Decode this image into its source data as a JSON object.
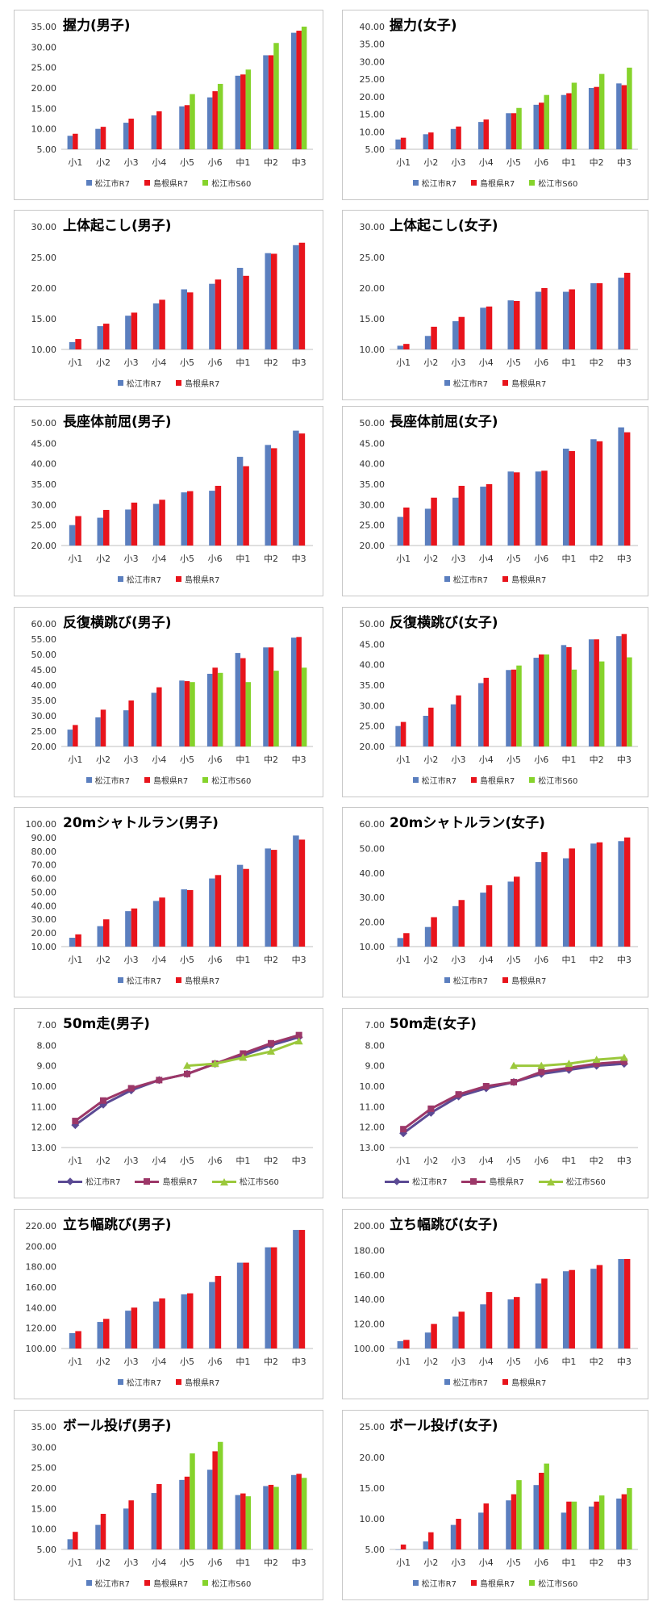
{
  "legend_labels": {
    "matsue_r7": "松江市R7",
    "shimane_r7": "島根県R7",
    "matsue_s60": "松江市S60"
  },
  "colors": {
    "matsue_r7": "#5b7fbf",
    "shimane_r7": "#e8141c",
    "matsue_s60": "#86d32c",
    "matsue_r7_line": "#5b4a94",
    "shimane_r7_line": "#9c3768",
    "matsue_s60_line": "#9bc83c"
  },
  "chart_data": [
    {
      "type": "bar",
      "title": "握力(男子)",
      "categories": [
        "小1",
        "小2",
        "小3",
        "小4",
        "小5",
        "小6",
        "中1",
        "中2",
        "中3"
      ],
      "ylim": [
        5,
        35
      ],
      "yticks": [
        "5.00",
        "10.00",
        "15.00",
        "20.00",
        "25.00",
        "30.00",
        "35.00"
      ],
      "series": [
        {
          "name": "松江市R7",
          "key": "matsue_r7",
          "values": [
            8.3,
            10.0,
            11.5,
            13.3,
            15.5,
            17.7,
            23.0,
            28.0,
            33.5
          ]
        },
        {
          "name": "島根県R7",
          "key": "shimane_r7",
          "values": [
            8.8,
            10.5,
            12.5,
            14.3,
            15.8,
            19.2,
            23.3,
            28.0,
            34.0
          ]
        },
        {
          "name": "松江市S60",
          "key": "matsue_s60",
          "values": [
            null,
            null,
            null,
            null,
            18.5,
            21.0,
            24.5,
            31.0,
            35.0
          ]
        }
      ]
    },
    {
      "type": "bar",
      "title": "握力(女子)",
      "categories": [
        "小1",
        "小2",
        "小3",
        "小4",
        "小5",
        "小6",
        "中1",
        "中2",
        "中3"
      ],
      "ylim": [
        5,
        40
      ],
      "yticks": [
        "5.00",
        "10.00",
        "15.00",
        "20.00",
        "25.00",
        "30.00",
        "35.00",
        "40.00"
      ],
      "series": [
        {
          "name": "松江市R7",
          "key": "matsue_r7",
          "values": [
            7.8,
            9.3,
            10.8,
            12.8,
            15.3,
            17.7,
            20.5,
            22.5,
            23.8
          ]
        },
        {
          "name": "島根県R7",
          "key": "shimane_r7",
          "values": [
            8.3,
            9.8,
            11.5,
            13.5,
            15.3,
            18.3,
            21.0,
            22.8,
            23.3
          ]
        },
        {
          "name": "松江市S60",
          "key": "matsue_s60",
          "values": [
            null,
            null,
            null,
            null,
            16.8,
            20.5,
            24.0,
            26.5,
            28.3
          ]
        }
      ]
    },
    {
      "type": "bar",
      "title": "上体起こし(男子)",
      "categories": [
        "小1",
        "小2",
        "小3",
        "小4",
        "小5",
        "小6",
        "中1",
        "中2",
        "中3"
      ],
      "ylim": [
        10,
        30
      ],
      "yticks": [
        "10.00",
        "15.00",
        "20.00",
        "25.00",
        "30.00"
      ],
      "series": [
        {
          "name": "松江市R7",
          "key": "matsue_r7",
          "values": [
            11.2,
            13.8,
            15.5,
            17.5,
            19.8,
            20.7,
            23.3,
            25.7,
            27.0
          ]
        },
        {
          "name": "島根県R7",
          "key": "shimane_r7",
          "values": [
            11.7,
            14.2,
            16.0,
            18.1,
            19.3,
            21.4,
            22.0,
            25.6,
            27.4
          ]
        }
      ]
    },
    {
      "type": "bar",
      "title": "上体起こし(女子)",
      "categories": [
        "小1",
        "小2",
        "小3",
        "小4",
        "小5",
        "小6",
        "中1",
        "中2",
        "中3"
      ],
      "ylim": [
        10,
        30
      ],
      "yticks": [
        "10.00",
        "15.00",
        "20.00",
        "25.00",
        "30.00"
      ],
      "series": [
        {
          "name": "松江市R7",
          "key": "matsue_r7",
          "values": [
            10.6,
            12.2,
            14.6,
            16.8,
            18.0,
            19.4,
            19.4,
            20.8,
            21.7
          ]
        },
        {
          "name": "島根県R7",
          "key": "shimane_r7",
          "values": [
            10.9,
            13.7,
            15.3,
            17.0,
            17.9,
            20.0,
            19.8,
            20.8,
            22.5
          ]
        }
      ]
    },
    {
      "type": "bar",
      "title": "長座体前屈(男子)",
      "categories": [
        "小1",
        "小2",
        "小3",
        "小4",
        "小5",
        "小6",
        "中1",
        "中2",
        "中3"
      ],
      "ylim": [
        20,
        50
      ],
      "yticks": [
        "20.00",
        "25.00",
        "30.00",
        "35.00",
        "40.00",
        "45.00",
        "50.00"
      ],
      "series": [
        {
          "name": "松江市R7",
          "key": "matsue_r7",
          "values": [
            25.0,
            26.8,
            28.8,
            30.2,
            33.0,
            33.4,
            41.7,
            44.6,
            48.1
          ]
        },
        {
          "name": "島根県R7",
          "key": "shimane_r7",
          "values": [
            27.2,
            28.7,
            30.5,
            31.2,
            33.3,
            34.6,
            39.4,
            43.8,
            47.4
          ]
        }
      ]
    },
    {
      "type": "bar",
      "title": "長座体前屈(女子)",
      "categories": [
        "小1",
        "小2",
        "小3",
        "小4",
        "小5",
        "小6",
        "中1",
        "中2",
        "中3"
      ],
      "ylim": [
        20,
        50
      ],
      "yticks": [
        "20.00",
        "25.00",
        "30.00",
        "35.00",
        "40.00",
        "45.00",
        "50.00"
      ],
      "series": [
        {
          "name": "松江市R7",
          "key": "matsue_r7",
          "values": [
            27.0,
            29.0,
            31.7,
            34.4,
            38.1,
            38.1,
            43.7,
            46.0,
            48.9
          ]
        },
        {
          "name": "島根県R7",
          "key": "shimane_r7",
          "values": [
            29.3,
            31.7,
            34.6,
            35.0,
            37.9,
            38.3,
            43.1,
            45.5,
            47.7
          ]
        }
      ]
    },
    {
      "type": "bar",
      "title": "反復横跳び(男子)",
      "categories": [
        "小1",
        "小2",
        "小3",
        "小4",
        "小5",
        "小6",
        "中1",
        "中2",
        "中3"
      ],
      "ylim": [
        20,
        60
      ],
      "yticks": [
        "20.00",
        "25.00",
        "30.00",
        "35.00",
        "40.00",
        "45.00",
        "50.00",
        "55.00",
        "60.00"
      ],
      "series": [
        {
          "name": "松江市R7",
          "key": "matsue_r7",
          "values": [
            25.5,
            29.5,
            31.8,
            37.5,
            41.5,
            43.7,
            50.5,
            52.3,
            55.5
          ]
        },
        {
          "name": "島根県R7",
          "key": "shimane_r7",
          "values": [
            27.0,
            32.0,
            35.0,
            39.3,
            41.3,
            45.7,
            48.8,
            52.3,
            55.7
          ]
        },
        {
          "name": "松江市S60",
          "key": "matsue_s60",
          "values": [
            null,
            null,
            null,
            null,
            41.0,
            44.0,
            41.0,
            44.7,
            45.7
          ]
        }
      ]
    },
    {
      "type": "bar",
      "title": "反復横跳び(女子)",
      "categories": [
        "小1",
        "小2",
        "小3",
        "小4",
        "小5",
        "小6",
        "中1",
        "中2",
        "中3"
      ],
      "ylim": [
        20,
        50
      ],
      "yticks": [
        "20.00",
        "25.00",
        "30.00",
        "35.00",
        "40.00",
        "45.00",
        "50.00"
      ],
      "series": [
        {
          "name": "松江市R7",
          "key": "matsue_r7",
          "values": [
            25.0,
            27.5,
            30.3,
            35.5,
            38.7,
            41.7,
            44.8,
            46.2,
            47.0
          ]
        },
        {
          "name": "島根県R7",
          "key": "shimane_r7",
          "values": [
            26.0,
            29.5,
            32.5,
            36.8,
            38.8,
            42.5,
            44.3,
            46.2,
            47.5
          ]
        },
        {
          "name": "松江市S60",
          "key": "matsue_s60",
          "values": [
            null,
            null,
            null,
            null,
            39.8,
            42.5,
            38.8,
            40.8,
            41.8
          ]
        }
      ]
    },
    {
      "type": "bar",
      "title": "20mシャトルラン(男子)",
      "categories": [
        "小1",
        "小2",
        "小3",
        "小4",
        "小5",
        "小6",
        "中1",
        "中2",
        "中3"
      ],
      "ylim": [
        10,
        100
      ],
      "yticks": [
        "10.00",
        "20.00",
        "30.00",
        "40.00",
        "50.00",
        "60.00",
        "70.00",
        "80.00",
        "90.00",
        "100.00"
      ],
      "series": [
        {
          "name": "松江市R7",
          "key": "matsue_r7",
          "values": [
            16.5,
            25.0,
            36.0,
            43.5,
            52.0,
            60.0,
            70.0,
            82.0,
            91.5
          ]
        },
        {
          "name": "島根県R7",
          "key": "shimane_r7",
          "values": [
            19.0,
            30.0,
            38.0,
            46.0,
            51.5,
            62.5,
            67.0,
            81.0,
            88.5
          ]
        }
      ]
    },
    {
      "type": "bar",
      "title": "20mシャトルラン(女子)",
      "categories": [
        "小1",
        "小2",
        "小3",
        "小4",
        "小5",
        "小6",
        "中1",
        "中2",
        "中3"
      ],
      "ylim": [
        10,
        60
      ],
      "yticks": [
        "10.00",
        "20.00",
        "30.00",
        "40.00",
        "50.00",
        "60.00"
      ],
      "series": [
        {
          "name": "松江市R7",
          "key": "matsue_r7",
          "values": [
            13.5,
            18.0,
            26.5,
            32.0,
            36.5,
            44.5,
            46.0,
            52.0,
            53.0
          ]
        },
        {
          "name": "島根県R7",
          "key": "shimane_r7",
          "values": [
            15.5,
            22.0,
            29.0,
            35.0,
            38.5,
            48.5,
            50.0,
            52.5,
            54.5
          ]
        }
      ]
    },
    {
      "type": "line",
      "title": "50m走(男子)",
      "reversed_y": true,
      "categories": [
        "小1",
        "小2",
        "小3",
        "小4",
        "小5",
        "小6",
        "中1",
        "中2",
        "中3"
      ],
      "ylim": [
        7,
        13
      ],
      "yticks": [
        "7.00",
        "8.00",
        "9.00",
        "10.00",
        "11.00",
        "12.00",
        "13.00"
      ],
      "series": [
        {
          "name": "松江市R7",
          "key": "matsue_r7_line",
          "marker": "diamond",
          "values": [
            11.9,
            10.9,
            10.2,
            9.7,
            9.4,
            8.9,
            8.5,
            8.0,
            7.6
          ]
        },
        {
          "name": "島根県R7",
          "key": "shimane_r7_line",
          "marker": "square",
          "values": [
            11.7,
            10.7,
            10.1,
            9.7,
            9.4,
            8.9,
            8.4,
            7.9,
            7.5
          ]
        },
        {
          "name": "松江市S60",
          "key": "matsue_s60_line",
          "marker": "triangle",
          "values": [
            null,
            null,
            null,
            null,
            9.0,
            8.9,
            8.6,
            8.3,
            7.8
          ]
        }
      ]
    },
    {
      "type": "line",
      "title": "50m走(女子)",
      "reversed_y": true,
      "categories": [
        "小1",
        "小2",
        "小3",
        "小4",
        "小5",
        "小6",
        "中1",
        "中2",
        "中3"
      ],
      "ylim": [
        7,
        13
      ],
      "yticks": [
        "7.00",
        "8.00",
        "9.00",
        "10.00",
        "11.00",
        "12.00",
        "13.00"
      ],
      "series": [
        {
          "name": "松江市R7",
          "key": "matsue_r7_line",
          "marker": "diamond",
          "values": [
            12.3,
            11.3,
            10.5,
            10.1,
            9.8,
            9.4,
            9.2,
            9.0,
            8.9
          ]
        },
        {
          "name": "島根県R7",
          "key": "shimane_r7_line",
          "marker": "square",
          "values": [
            12.1,
            11.1,
            10.4,
            10.0,
            9.8,
            9.3,
            9.1,
            8.9,
            8.8
          ]
        },
        {
          "name": "松江市S60",
          "key": "matsue_s60_line",
          "marker": "triangle",
          "values": [
            null,
            null,
            null,
            null,
            9.0,
            9.0,
            8.9,
            8.7,
            8.6
          ]
        }
      ]
    },
    {
      "type": "bar",
      "title": "立ち幅跳び(男子)",
      "categories": [
        "小1",
        "小2",
        "小3",
        "小4",
        "小5",
        "小6",
        "中1",
        "中2",
        "中3"
      ],
      "ylim": [
        100,
        220
      ],
      "yticks": [
        "100.00",
        "120.00",
        "140.00",
        "160.00",
        "180.00",
        "200.00",
        "220.00"
      ],
      "series": [
        {
          "name": "松江市R7",
          "key": "matsue_r7",
          "values": [
            115,
            126,
            137,
            146,
            153,
            165,
            184,
            199,
            216
          ]
        },
        {
          "name": "島根県R7",
          "key": "shimane_r7",
          "values": [
            117,
            129,
            140,
            149,
            154,
            171,
            184,
            199,
            216
          ]
        }
      ]
    },
    {
      "type": "bar",
      "title": "立ち幅跳び(女子)",
      "categories": [
        "小1",
        "小2",
        "小3",
        "小4",
        "小5",
        "小6",
        "中1",
        "中2",
        "中3"
      ],
      "ylim": [
        100,
        200
      ],
      "yticks": [
        "100.00",
        "120.00",
        "140.00",
        "160.00",
        "180.00",
        "200.00"
      ],
      "series": [
        {
          "name": "松江市R7",
          "key": "matsue_r7",
          "values": [
            106,
            113,
            126,
            136,
            140,
            153,
            163,
            165,
            173
          ]
        },
        {
          "name": "島根県R7",
          "key": "shimane_r7",
          "values": [
            107,
            120,
            130,
            146,
            142,
            157,
            164,
            168,
            173
          ]
        }
      ]
    },
    {
      "type": "bar",
      "title": "ボール投げ(男子)",
      "categories": [
        "小1",
        "小2",
        "小3",
        "小4",
        "小5",
        "小6",
        "中1",
        "中2",
        "中3"
      ],
      "ylim": [
        5,
        35
      ],
      "yticks": [
        "5.00",
        "10.00",
        "15.00",
        "20.00",
        "25.00",
        "30.00",
        "35.00"
      ],
      "series": [
        {
          "name": "松江市R7",
          "key": "matsue_r7",
          "values": [
            7.5,
            11.0,
            15.0,
            18.8,
            22.0,
            24.5,
            18.3,
            20.5,
            23.2
          ]
        },
        {
          "name": "島根県R7",
          "key": "shimane_r7",
          "values": [
            9.3,
            13.7,
            17.0,
            21.0,
            22.8,
            29.0,
            18.7,
            20.8,
            23.5
          ]
        },
        {
          "name": "松江市S60",
          "key": "matsue_s60",
          "values": [
            null,
            null,
            null,
            null,
            28.5,
            31.3,
            18.0,
            20.3,
            22.5
          ]
        }
      ]
    },
    {
      "type": "bar",
      "title": "ボール投げ(女子)",
      "categories": [
        "小1",
        "小2",
        "小3",
        "小4",
        "小5",
        "小6",
        "中1",
        "中2",
        "中3"
      ],
      "ylim": [
        5,
        25
      ],
      "yticks": [
        "5.00",
        "10.00",
        "15.00",
        "20.00",
        "25.00"
      ],
      "series": [
        {
          "name": "松江市R7",
          "key": "matsue_r7",
          "values": [
            4.8,
            6.3,
            9.0,
            11.0,
            13.0,
            15.5,
            11.0,
            12.0,
            13.3
          ]
        },
        {
          "name": "島根県R7",
          "key": "shimane_r7",
          "values": [
            5.8,
            7.8,
            10.0,
            12.5,
            14.0,
            17.5,
            12.8,
            12.8,
            14.0
          ]
        },
        {
          "name": "松江市S60",
          "key": "matsue_s60",
          "values": [
            null,
            null,
            null,
            null,
            16.3,
            19.0,
            12.8,
            13.8,
            15.0
          ]
        }
      ]
    }
  ]
}
